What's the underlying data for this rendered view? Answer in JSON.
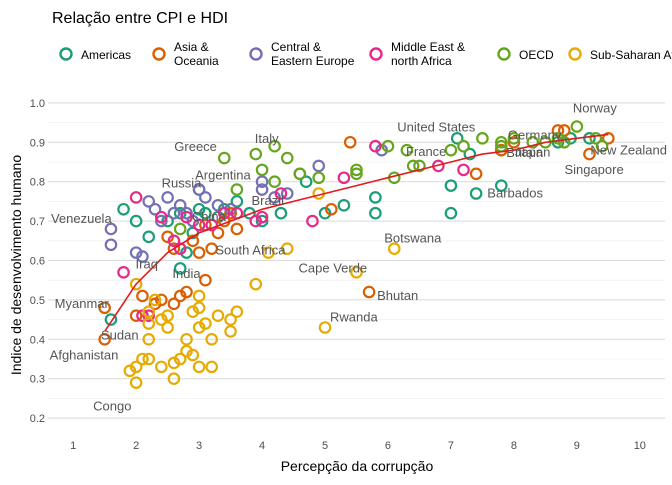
{
  "chart_data": {
    "type": "scatter",
    "title": "Relação entre CPI e HDI",
    "xlabel": "Percepção da corrupção",
    "ylabel": "Indice de desenvolvimento humano",
    "xlim": [
      0.6,
      10.4
    ],
    "ylim": [
      0.18,
      1.02
    ],
    "xticks": [
      "1",
      "2",
      "3",
      "4",
      "5",
      "6",
      "7",
      "8",
      "9",
      "10"
    ],
    "yticks": [
      "0.2",
      "0.3",
      "0.4",
      "0.5",
      "0.6",
      "0.7",
      "0.8",
      "0.9",
      "1.0"
    ],
    "grid": true,
    "legend_position": "top",
    "series": [
      {
        "name": "Americas",
        "color": "#1b9e77",
        "points": [
          [
            1.6,
            0.45
          ],
          [
            1.8,
            0.73
          ],
          [
            2.0,
            0.7
          ],
          [
            2.2,
            0.66
          ],
          [
            2.5,
            0.7
          ],
          [
            2.7,
            0.72
          ],
          [
            2.7,
            0.58
          ],
          [
            2.8,
            0.62
          ],
          [
            2.9,
            0.67
          ],
          [
            3.0,
            0.78
          ],
          [
            3.0,
            0.73
          ],
          [
            3.1,
            0.72
          ],
          [
            3.3,
            0.71
          ],
          [
            3.4,
            0.73
          ],
          [
            3.5,
            0.72
          ],
          [
            3.6,
            0.75
          ],
          [
            3.8,
            0.72
          ],
          [
            4.0,
            0.7
          ],
          [
            4.3,
            0.72
          ],
          [
            4.7,
            0.8
          ],
          [
            5.0,
            0.72
          ],
          [
            5.3,
            0.74
          ],
          [
            5.8,
            0.72
          ],
          [
            5.8,
            0.76
          ],
          [
            7.0,
            0.72
          ],
          [
            7.0,
            0.79
          ],
          [
            7.1,
            0.91
          ],
          [
            7.3,
            0.87
          ],
          [
            7.4,
            0.77
          ],
          [
            7.8,
            0.79
          ],
          [
            7.8,
            0.88
          ],
          [
            8.7,
            0.9
          ],
          [
            8.9,
            0.91
          ],
          [
            9.2,
            0.91
          ]
        ]
      },
      {
        "name": "Asia & Oceania",
        "color": "#d95f02",
        "points": [
          [
            1.5,
            0.4
          ],
          [
            1.5,
            0.48
          ],
          [
            2.0,
            0.46
          ],
          [
            2.1,
            0.51
          ],
          [
            2.3,
            0.49
          ],
          [
            2.4,
            0.5
          ],
          [
            2.5,
            0.66
          ],
          [
            2.6,
            0.49
          ],
          [
            2.6,
            0.63
          ],
          [
            2.7,
            0.51
          ],
          [
            2.8,
            0.52
          ],
          [
            2.9,
            0.65
          ],
          [
            3.0,
            0.62
          ],
          [
            3.1,
            0.55
          ],
          [
            3.1,
            0.69
          ],
          [
            3.2,
            0.63
          ],
          [
            3.3,
            0.67
          ],
          [
            3.4,
            0.7
          ],
          [
            3.5,
            0.72
          ],
          [
            3.6,
            0.68
          ],
          [
            5.1,
            0.73
          ],
          [
            5.4,
            0.9
          ],
          [
            5.7,
            0.52
          ],
          [
            7.4,
            0.82
          ],
          [
            7.8,
            0.88
          ],
          [
            8.0,
            0.9
          ],
          [
            8.7,
            0.93
          ],
          [
            8.8,
            0.93
          ],
          [
            9.2,
            0.87
          ],
          [
            9.5,
            0.91
          ]
        ]
      },
      {
        "name": "Central & Eastern Europe",
        "color": "#7570b3",
        "points": [
          [
            1.6,
            0.68
          ],
          [
            1.6,
            0.64
          ],
          [
            2.0,
            0.62
          ],
          [
            2.1,
            0.61
          ],
          [
            2.2,
            0.75
          ],
          [
            2.3,
            0.73
          ],
          [
            2.4,
            0.7
          ],
          [
            2.5,
            0.76
          ],
          [
            2.6,
            0.72
          ],
          [
            2.7,
            0.74
          ],
          [
            2.8,
            0.72
          ],
          [
            2.9,
            0.7
          ],
          [
            3.0,
            0.78
          ],
          [
            3.1,
            0.76
          ],
          [
            3.3,
            0.74
          ],
          [
            3.5,
            0.73
          ],
          [
            4.0,
            0.8
          ],
          [
            4.0,
            0.78
          ],
          [
            4.2,
            0.76
          ],
          [
            4.4,
            0.77
          ],
          [
            4.6,
            0.82
          ],
          [
            4.9,
            0.84
          ],
          [
            5.9,
            0.88
          ]
        ]
      },
      {
        "name": "Middle East & north Africa",
        "color": "#e7298a",
        "points": [
          [
            1.8,
            0.57
          ],
          [
            2.0,
            0.76
          ],
          [
            2.1,
            0.46
          ],
          [
            2.2,
            0.46
          ],
          [
            2.4,
            0.71
          ],
          [
            2.6,
            0.65
          ],
          [
            2.7,
            0.63
          ],
          [
            2.8,
            0.71
          ],
          [
            3.0,
            0.69
          ],
          [
            3.2,
            0.69
          ],
          [
            3.4,
            0.72
          ],
          [
            3.6,
            0.72
          ],
          [
            3.9,
            0.7
          ],
          [
            4.0,
            0.71
          ],
          [
            4.3,
            0.77
          ],
          [
            4.8,
            0.7
          ],
          [
            5.3,
            0.81
          ],
          [
            5.8,
            0.89
          ],
          [
            6.8,
            0.84
          ],
          [
            7.2,
            0.83
          ]
        ]
      },
      {
        "name": "OECD",
        "color": "#66a61e",
        "points": [
          [
            2.7,
            0.68
          ],
          [
            3.4,
            0.86
          ],
          [
            3.6,
            0.78
          ],
          [
            3.9,
            0.87
          ],
          [
            4.0,
            0.83
          ],
          [
            4.2,
            0.8
          ],
          [
            4.2,
            0.89
          ],
          [
            4.4,
            0.86
          ],
          [
            4.6,
            0.82
          ],
          [
            4.9,
            0.81
          ],
          [
            5.5,
            0.82
          ],
          [
            5.5,
            0.83
          ],
          [
            6.0,
            0.89
          ],
          [
            6.1,
            0.81
          ],
          [
            6.3,
            0.88
          ],
          [
            6.4,
            0.84
          ],
          [
            6.5,
            0.84
          ],
          [
            7.0,
            0.88
          ],
          [
            7.2,
            0.89
          ],
          [
            7.5,
            0.91
          ],
          [
            7.8,
            0.9
          ],
          [
            7.8,
            0.89
          ],
          [
            8.0,
            0.91
          ],
          [
            8.3,
            0.9
          ],
          [
            8.5,
            0.9
          ],
          [
            8.7,
            0.91
          ],
          [
            8.8,
            0.9
          ],
          [
            9.0,
            0.94
          ],
          [
            9.3,
            0.91
          ],
          [
            9.4,
            0.89
          ]
        ]
      },
      {
        "name": "Sub-Saharan Africa",
        "color": "#e6ab02",
        "points": [
          [
            1.9,
            0.32
          ],
          [
            2.0,
            0.29
          ],
          [
            2.0,
            0.33
          ],
          [
            2.0,
            0.54
          ],
          [
            2.1,
            0.35
          ],
          [
            2.2,
            0.35
          ],
          [
            2.2,
            0.4
          ],
          [
            2.2,
            0.44
          ],
          [
            2.2,
            0.47
          ],
          [
            2.3,
            0.5
          ],
          [
            2.4,
            0.33
          ],
          [
            2.4,
            0.45
          ],
          [
            2.5,
            0.43
          ],
          [
            2.5,
            0.46
          ],
          [
            2.6,
            0.34
          ],
          [
            2.6,
            0.3
          ],
          [
            2.7,
            0.35
          ],
          [
            2.8,
            0.37
          ],
          [
            2.8,
            0.4
          ],
          [
            2.9,
            0.36
          ],
          [
            2.9,
            0.47
          ],
          [
            3.0,
            0.33
          ],
          [
            3.0,
            0.43
          ],
          [
            3.0,
            0.48
          ],
          [
            3.0,
            0.51
          ],
          [
            3.1,
            0.44
          ],
          [
            3.2,
            0.33
          ],
          [
            3.2,
            0.4
          ],
          [
            3.3,
            0.46
          ],
          [
            3.5,
            0.42
          ],
          [
            3.5,
            0.45
          ],
          [
            3.6,
            0.47
          ],
          [
            3.9,
            0.54
          ],
          [
            4.1,
            0.62
          ],
          [
            4.4,
            0.63
          ],
          [
            4.9,
            0.77
          ],
          [
            5.0,
            0.43
          ],
          [
            5.5,
            0.57
          ],
          [
            6.1,
            0.63
          ]
        ]
      }
    ],
    "trend_line": {
      "color": "#e31a1c",
      "points": [
        [
          1.5,
          0.42
        ],
        [
          2.0,
          0.54
        ],
        [
          2.5,
          0.62
        ],
        [
          3.0,
          0.67
        ],
        [
          3.5,
          0.7
        ],
        [
          4.0,
          0.73
        ],
        [
          4.5,
          0.75
        ],
        [
          5.0,
          0.77
        ],
        [
          5.5,
          0.79
        ],
        [
          6.0,
          0.81
        ],
        [
          6.5,
          0.83
        ],
        [
          7.0,
          0.85
        ],
        [
          7.5,
          0.87
        ],
        [
          8.0,
          0.88
        ],
        [
          8.5,
          0.9
        ],
        [
          9.0,
          0.91
        ],
        [
          9.5,
          0.92
        ]
      ]
    },
    "annotations": [
      {
        "text": "Afghanistan",
        "x": 1.5,
        "y": 0.4
      },
      {
        "text": "Myanmar",
        "x": 1.5,
        "y": 0.48
      },
      {
        "text": "Sudan",
        "x": 1.6,
        "y": 0.45
      },
      {
        "text": "Congo",
        "x": 2.0,
        "y": 0.29
      },
      {
        "text": "Iraq",
        "x": 1.8,
        "y": 0.57
      },
      {
        "text": "India",
        "x": 3.1,
        "y": 0.55
      },
      {
        "text": "Venezuela",
        "x": 1.6,
        "y": 0.68
      },
      {
        "text": "Russia",
        "x": 2.5,
        "y": 0.76
      },
      {
        "text": "China",
        "x": 3.6,
        "y": 0.68
      },
      {
        "text": "Argentina",
        "x": 3.0,
        "y": 0.78
      },
      {
        "text": "Brazil",
        "x": 3.8,
        "y": 0.72
      },
      {
        "text": "South Africa",
        "x": 4.1,
        "y": 0.62
      },
      {
        "text": "Greece",
        "x": 3.4,
        "y": 0.86
      },
      {
        "text": "Italy",
        "x": 3.9,
        "y": 0.87
      },
      {
        "text": "Cape Verde",
        "x": 5.5,
        "y": 0.57
      },
      {
        "text": "Rwanda",
        "x": 5.0,
        "y": 0.43
      },
      {
        "text": "Bhutan",
        "x": 5.7,
        "y": 0.52
      },
      {
        "text": "Botswana",
        "x": 6.1,
        "y": 0.63
      },
      {
        "text": "United States",
        "x": 7.1,
        "y": 0.91
      },
      {
        "text": "France",
        "x": 7.0,
        "y": 0.88
      },
      {
        "text": "Britain",
        "x": 7.8,
        "y": 0.88
      },
      {
        "text": "Barbados",
        "x": 7.8,
        "y": 0.79
      },
      {
        "text": "Germany",
        "x": 8.0,
        "y": 0.91
      },
      {
        "text": "Japan",
        "x": 8.0,
        "y": 0.9
      },
      {
        "text": "Norway",
        "x": 9.0,
        "y": 0.94
      },
      {
        "text": "New Zealand",
        "x": 9.5,
        "y": 0.91
      },
      {
        "text": "Singapore",
        "x": 9.2,
        "y": 0.87
      }
    ]
  }
}
